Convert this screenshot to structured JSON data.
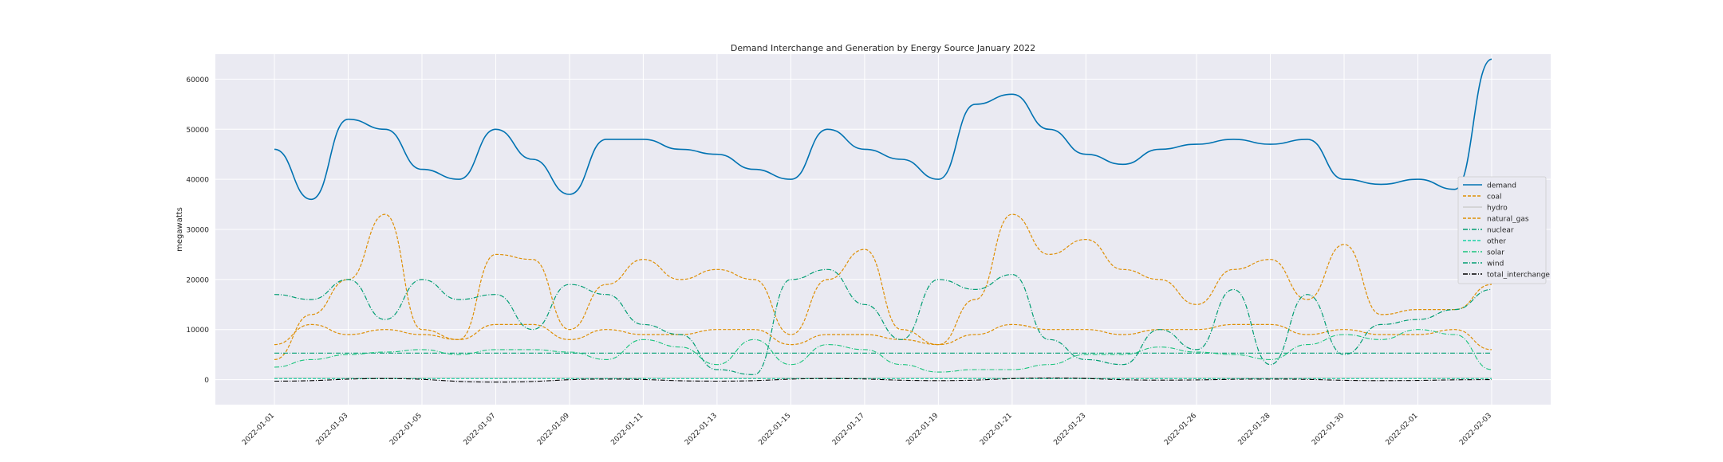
{
  "chart_data": {
    "type": "line",
    "title": "Demand Interchange and Generation by Energy Source January 2022",
    "xlabel": "",
    "ylabel": "megawatts",
    "x_ticks": [
      "2022-01-01",
      "2022-01-03",
      "2022-01-05",
      "2022-01-07",
      "2022-01-09",
      "2022-01-11",
      "2022-01-13",
      "2022-01-15",
      "2022-01-17",
      "2022-01-19",
      "2022-01-21",
      "2022-01-23",
      "2022-01-26",
      "2022-01-28",
      "2022-01-30",
      "2022-02-01",
      "2022-02-03"
    ],
    "y_ticks": [
      0,
      10000,
      20000,
      30000,
      40000,
      50000,
      60000
    ],
    "ylim": [
      -5000,
      65000
    ],
    "grid": true,
    "style": "seaborn darkgrid",
    "legend_position": "right",
    "colors": {
      "demand": "#0173b2",
      "coal": "#de8f05",
      "hydro": "#cccccc",
      "natural_gas": "#de8f05",
      "nuclear": "#029e73",
      "other": "#1bd1a5",
      "solar": "#1bc47d",
      "wind": "#029e73",
      "total_interchange": "#000000"
    },
    "series": [
      {
        "name": "demand",
        "x": [
          "2022-01-01",
          "2022-01-02",
          "2022-01-03",
          "2022-01-04",
          "2022-01-05",
          "2022-01-06",
          "2022-01-07",
          "2022-01-08",
          "2022-01-09",
          "2022-01-10",
          "2022-01-11",
          "2022-01-12",
          "2022-01-13",
          "2022-01-14",
          "2022-01-15",
          "2022-01-16",
          "2022-01-17",
          "2022-01-18",
          "2022-01-19",
          "2022-01-20",
          "2022-01-21",
          "2022-01-22",
          "2022-01-23",
          "2022-01-24",
          "2022-01-25",
          "2022-01-26",
          "2022-01-27",
          "2022-01-28",
          "2022-01-29",
          "2022-01-30",
          "2022-01-31",
          "2022-02-01",
          "2022-02-02",
          "2022-02-03"
        ],
        "values": [
          46000,
          36000,
          52000,
          50000,
          42000,
          40000,
          50000,
          44000,
          37000,
          48000,
          48000,
          46000,
          45000,
          42000,
          40000,
          50000,
          46000,
          44000,
          40000,
          55000,
          57000,
          50000,
          45000,
          43000,
          46000,
          47000,
          48000,
          47000,
          48000,
          40000,
          39000,
          40000,
          38000,
          64000
        ]
      },
      {
        "name": "coal",
        "x": [
          "2022-01-01",
          "2022-01-02",
          "2022-01-03",
          "2022-01-04",
          "2022-01-05",
          "2022-01-06",
          "2022-01-07",
          "2022-01-08",
          "2022-01-09",
          "2022-01-10",
          "2022-01-11",
          "2022-01-12",
          "2022-01-13",
          "2022-01-14",
          "2022-01-15",
          "2022-01-16",
          "2022-01-17",
          "2022-01-18",
          "2022-01-19",
          "2022-01-20",
          "2022-01-21",
          "2022-01-22",
          "2022-01-23",
          "2022-01-24",
          "2022-01-25",
          "2022-01-26",
          "2022-01-27",
          "2022-01-28",
          "2022-01-29",
          "2022-01-30",
          "2022-01-31",
          "2022-02-01",
          "2022-02-02",
          "2022-02-03"
        ],
        "values": [
          7000,
          11000,
          9000,
          10000,
          9000,
          8000,
          11000,
          11000,
          8000,
          10000,
          9000,
          9000,
          10000,
          10000,
          7000,
          9000,
          9000,
          8000,
          7000,
          9000,
          11000,
          10000,
          10000,
          9000,
          10000,
          10000,
          11000,
          11000,
          9000,
          10000,
          9000,
          9000,
          10000,
          6000
        ]
      },
      {
        "name": "hydro",
        "x": [
          "2022-01-01",
          "2022-01-06",
          "2022-01-11",
          "2022-01-16",
          "2022-01-21",
          "2022-01-26",
          "2022-01-31",
          "2022-02-03"
        ],
        "values": [
          400,
          400,
          400,
          400,
          400,
          400,
          400,
          400
        ]
      },
      {
        "name": "natural_gas",
        "x": [
          "2022-01-01",
          "2022-01-02",
          "2022-01-03",
          "2022-01-04",
          "2022-01-05",
          "2022-01-06",
          "2022-01-07",
          "2022-01-08",
          "2022-01-09",
          "2022-01-10",
          "2022-01-11",
          "2022-01-12",
          "2022-01-13",
          "2022-01-14",
          "2022-01-15",
          "2022-01-16",
          "2022-01-17",
          "2022-01-18",
          "2022-01-19",
          "2022-01-20",
          "2022-01-21",
          "2022-01-22",
          "2022-01-23",
          "2022-01-24",
          "2022-01-25",
          "2022-01-26",
          "2022-01-27",
          "2022-01-28",
          "2022-01-29",
          "2022-01-30",
          "2022-01-31",
          "2022-02-01",
          "2022-02-02",
          "2022-02-03"
        ],
        "values": [
          4000,
          13000,
          20000,
          33000,
          10000,
          8000,
          25000,
          24000,
          10000,
          19000,
          24000,
          20000,
          22000,
          20000,
          9000,
          20000,
          26000,
          10000,
          7000,
          16000,
          33000,
          25000,
          28000,
          22000,
          20000,
          15000,
          22000,
          24000,
          16000,
          27000,
          13000,
          14000,
          14000,
          19000
        ]
      },
      {
        "name": "nuclear",
        "x": [
          "2022-01-01",
          "2022-01-06",
          "2022-01-11",
          "2022-01-16",
          "2022-01-21",
          "2022-01-26",
          "2022-01-31",
          "2022-02-03"
        ],
        "values": [
          5300,
          5300,
          5300,
          5300,
          5300,
          5300,
          5300,
          5300
        ]
      },
      {
        "name": "other",
        "x": [
          "2022-01-01",
          "2022-01-06",
          "2022-01-11",
          "2022-01-16",
          "2022-01-21",
          "2022-01-26",
          "2022-01-31",
          "2022-02-03"
        ],
        "values": [
          200,
          200,
          200,
          200,
          200,
          200,
          200,
          200
        ]
      },
      {
        "name": "solar",
        "x": [
          "2022-01-01",
          "2022-01-02",
          "2022-01-03",
          "2022-01-04",
          "2022-01-05",
          "2022-01-06",
          "2022-01-07",
          "2022-01-08",
          "2022-01-09",
          "2022-01-10",
          "2022-01-11",
          "2022-01-12",
          "2022-01-13",
          "2022-01-14",
          "2022-01-15",
          "2022-01-16",
          "2022-01-17",
          "2022-01-18",
          "2022-01-19",
          "2022-01-20",
          "2022-01-21",
          "2022-01-22",
          "2022-01-23",
          "2022-01-24",
          "2022-01-25",
          "2022-01-26",
          "2022-01-27",
          "2022-01-28",
          "2022-01-29",
          "2022-01-30",
          "2022-01-31",
          "2022-02-01",
          "2022-02-02",
          "2022-02-03"
        ],
        "values": [
          2500,
          4000,
          5000,
          5500,
          6000,
          5000,
          6000,
          6000,
          5500,
          4000,
          8000,
          6500,
          3000,
          8000,
          3000,
          7000,
          6000,
          3000,
          1500,
          2000,
          2000,
          3000,
          5000,
          5000,
          6500,
          5500,
          5000,
          4000,
          7000,
          9000,
          8000,
          10000,
          9000,
          2000
        ]
      },
      {
        "name": "wind",
        "x": [
          "2022-01-01",
          "2022-01-02",
          "2022-01-03",
          "2022-01-04",
          "2022-01-05",
          "2022-01-06",
          "2022-01-07",
          "2022-01-08",
          "2022-01-09",
          "2022-01-10",
          "2022-01-11",
          "2022-01-12",
          "2022-01-13",
          "2022-01-14",
          "2022-01-15",
          "2022-01-16",
          "2022-01-17",
          "2022-01-18",
          "2022-01-19",
          "2022-01-20",
          "2022-01-21",
          "2022-01-22",
          "2022-01-23",
          "2022-01-24",
          "2022-01-25",
          "2022-01-26",
          "2022-01-27",
          "2022-01-28",
          "2022-01-29",
          "2022-01-30",
          "2022-01-31",
          "2022-02-01",
          "2022-02-02",
          "2022-02-03"
        ],
        "values": [
          17000,
          16000,
          20000,
          12000,
          20000,
          16000,
          17000,
          10000,
          19000,
          17000,
          11000,
          9000,
          2000,
          1000,
          20000,
          22000,
          15000,
          8000,
          20000,
          18000,
          21000,
          8000,
          4000,
          3000,
          10000,
          6000,
          18000,
          3000,
          17000,
          5000,
          11000,
          12000,
          14000,
          18000
        ]
      },
      {
        "name": "total_interchange",
        "x": [
          "2022-01-01",
          "2022-01-04",
          "2022-01-07",
          "2022-01-10",
          "2022-01-13",
          "2022-01-16",
          "2022-01-19",
          "2022-01-22",
          "2022-01-25",
          "2022-01-28",
          "2022-01-31",
          "2022-02-03"
        ],
        "values": [
          -300,
          200,
          -500,
          100,
          -300,
          200,
          -200,
          300,
          -100,
          100,
          -200,
          0
        ]
      }
    ],
    "legend": [
      "demand",
      "coal",
      "hydro",
      "natural_gas",
      "nuclear",
      "other",
      "solar",
      "wind",
      "total_interchange"
    ]
  }
}
